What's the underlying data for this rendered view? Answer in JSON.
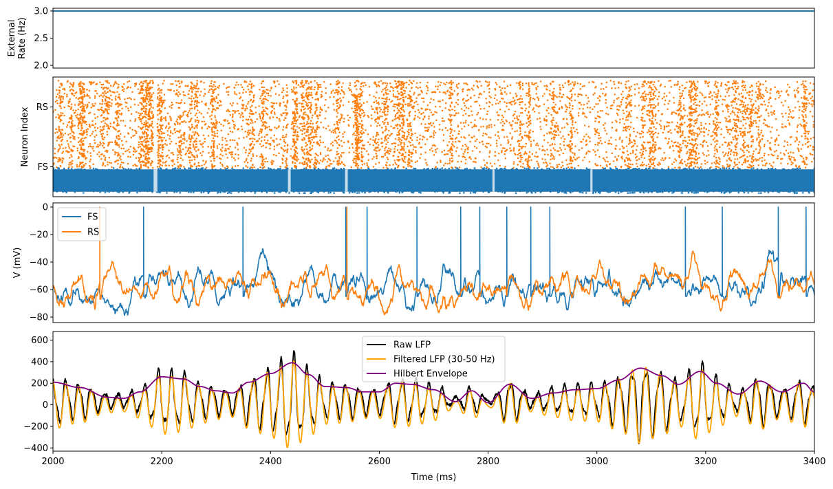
{
  "chart_data": [
    {
      "id": "rate",
      "type": "line",
      "ylabel_lines": [
        "External",
        "Rate (Hz)"
      ],
      "ylim": [
        1.95,
        3.05
      ],
      "yticks": [
        2.0,
        2.5,
        3.0
      ],
      "ytick_labels": [
        "2.0",
        "2.5",
        "3.0"
      ],
      "xlim": [
        2000,
        3400
      ],
      "grid": false,
      "series": [
        {
          "x": [
            2000,
            3400
          ],
          "y": [
            3.0,
            3.0
          ],
          "color": "#1f77b4"
        }
      ]
    },
    {
      "id": "raster",
      "type": "scatter",
      "ylabel": "Neuron Index",
      "yticks": [
        0.25,
        0.75
      ],
      "ytick_labels": [
        "FS",
        "RS"
      ],
      "ylim": [
        0,
        1
      ],
      "xlim": [
        2000,
        3400
      ],
      "groups": [
        {
          "label": "FS",
          "color": "#1f77b4",
          "band": [
            0.03,
            0.24
          ]
        },
        {
          "label": "RS",
          "color": "#ff7f0e",
          "band": [
            0.24,
            0.97
          ]
        }
      ],
      "quiet_windows_ms": [
        [
          2185,
          2192
        ],
        [
          2432,
          2437
        ],
        [
          2537,
          2542
        ],
        [
          2808,
          2812
        ],
        [
          2988,
          2992
        ]
      ]
    },
    {
      "id": "voltage",
      "type": "line",
      "ylabel": "V (mV)",
      "ylim": [
        -84,
        3
      ],
      "yticks": [
        0,
        -20,
        -40,
        -60,
        -80
      ],
      "ytick_labels": [
        "0",
        "−20",
        "−40",
        "−60",
        "−80"
      ],
      "xlim": [
        2000,
        3400
      ],
      "legend_position": "upper-left",
      "series": [
        {
          "name": "FS",
          "color": "#1f77b4",
          "baseline": -57,
          "spikes": [
            2166,
            2349,
            2538,
            2577,
            2669,
            2749,
            2784,
            2834,
            2878,
            2913,
            3162,
            3230,
            3333,
            3384
          ]
        },
        {
          "name": "RS",
          "color": "#ff7f0e",
          "baseline": -59,
          "spikes": [
            2086,
            2540
          ]
        }
      ]
    },
    {
      "id": "lfp",
      "type": "line",
      "xlabel": "Time (ms)",
      "ylim": [
        -430,
        680
      ],
      "yticks": [
        600,
        400,
        200,
        0,
        -200,
        -400
      ],
      "ytick_labels": [
        "600",
        "400",
        "200",
        "0",
        "−200",
        "−400"
      ],
      "xlim": [
        2000,
        3400
      ],
      "xticks": [
        2000,
        2200,
        2400,
        2600,
        2800,
        3000,
        3200,
        3400
      ],
      "xtick_labels": [
        "2000",
        "2200",
        "2400",
        "2600",
        "2800",
        "3000",
        "3200",
        "3400"
      ],
      "legend_position": "upper-center",
      "envelope": {
        "x": [
          2000,
          2050,
          2100,
          2130,
          2160,
          2200,
          2240,
          2270,
          2300,
          2330,
          2360,
          2400,
          2440,
          2470,
          2500,
          2540,
          2570,
          2600,
          2630,
          2660,
          2700,
          2740,
          2770,
          2800,
          2840,
          2880,
          2920,
          2960,
          3000,
          3040,
          3080,
          3120,
          3150,
          3190,
          3220,
          3260,
          3300,
          3340,
          3380,
          3400
        ],
        "y": [
          210,
          160,
          70,
          60,
          120,
          260,
          240,
          170,
          130,
          110,
          210,
          290,
          390,
          280,
          170,
          160,
          120,
          120,
          200,
          190,
          140,
          30,
          130,
          20,
          190,
          60,
          110,
          140,
          150,
          230,
          340,
          270,
          190,
          310,
          200,
          100,
          220,
          120,
          200,
          120
        ]
      },
      "series": [
        {
          "name": "Raw LFP",
          "color": "#000000"
        },
        {
          "name": "Filtered LFP (30-50 Hz)",
          "color": "#ffa500"
        },
        {
          "name": "Hilbert Envelope",
          "color": "#800080"
        }
      ]
    }
  ]
}
